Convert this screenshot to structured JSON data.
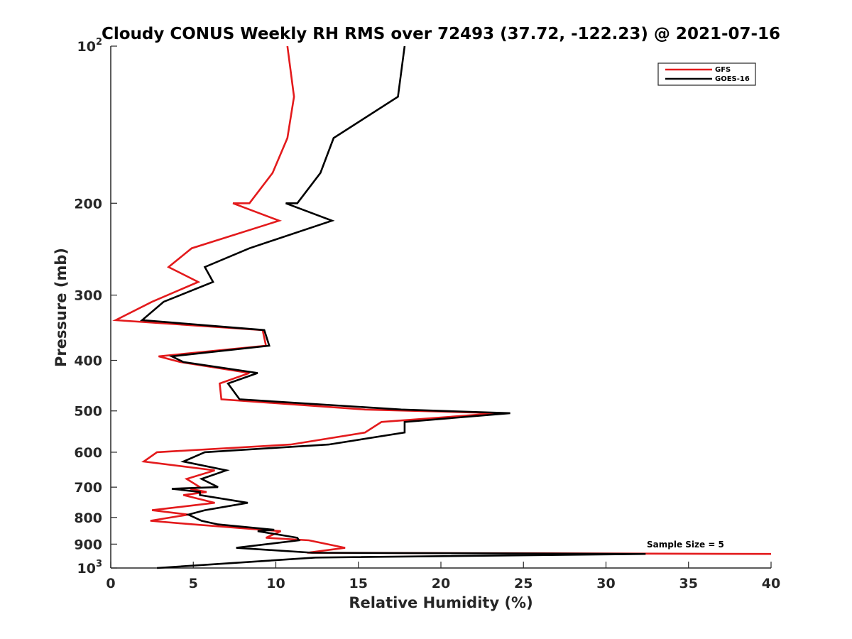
{
  "chart_data": {
    "type": "line",
    "title": "Cloudy CONUS Weekly RH RMS over 72493 (37.72, -122.23) @ 2021-07-16",
    "xlabel": "Relative Humidity (%)",
    "ylabel": "Pressure (mb)",
    "xlim": [
      0,
      40
    ],
    "ylim": [
      100,
      1000
    ],
    "y_scale": "log",
    "y_reversed": true,
    "grid": false,
    "legend_position": "top-right",
    "x_ticks": [
      "0",
      "5",
      "10",
      "15",
      "20",
      "25",
      "30",
      "35",
      "40"
    ],
    "y_ticks": [
      {
        "base": "10",
        "exp": "2",
        "label": ""
      },
      {
        "base": "",
        "exp": "",
        "label": "200"
      },
      {
        "base": "",
        "exp": "",
        "label": "300"
      },
      {
        "base": "",
        "exp": "",
        "label": "400"
      },
      {
        "base": "",
        "exp": "",
        "label": "500"
      },
      {
        "base": "",
        "exp": "",
        "label": "600"
      },
      {
        "base": "",
        "exp": "",
        "label": "700"
      },
      {
        "base": "",
        "exp": "",
        "label": "800"
      },
      {
        "base": "",
        "exp": "",
        "label": "900"
      },
      {
        "base": "10",
        "exp": "3",
        "label": ""
      }
    ],
    "annotation": "Sample Size = 5",
    "series": [
      {
        "name": "GFS",
        "color": "#e31a1c",
        "points": [
          [
            10.7,
            100
          ],
          [
            11.1,
            125
          ],
          [
            10.7,
            150
          ],
          [
            9.8,
            175
          ],
          [
            8.4,
            200
          ],
          [
            7.4,
            200
          ],
          [
            10.2,
            216
          ],
          [
            4.9,
            244
          ],
          [
            3.5,
            265
          ],
          [
            5.3,
            283
          ],
          [
            2.5,
            309
          ],
          [
            0.3,
            335
          ],
          [
            9.2,
            350
          ],
          [
            9.4,
            375
          ],
          [
            2.9,
            393
          ],
          [
            4.2,
            403
          ],
          [
            8.4,
            423
          ],
          [
            6.6,
            443
          ],
          [
            6.7,
            475
          ],
          [
            15.4,
            497
          ],
          [
            23.5,
            505
          ],
          [
            16.4,
            525
          ],
          [
            15.4,
            550
          ],
          [
            10.9,
            580
          ],
          [
            2.8,
            600
          ],
          [
            2.0,
            625
          ],
          [
            6.3,
            650
          ],
          [
            4.6,
            675
          ],
          [
            5.4,
            700
          ],
          [
            4.8,
            705
          ],
          [
            5.8,
            715
          ],
          [
            4.4,
            725
          ],
          [
            6.3,
            750
          ],
          [
            2.5,
            775
          ],
          [
            4.7,
            790
          ],
          [
            2.4,
            812
          ],
          [
            5.0,
            825
          ],
          [
            9.2,
            845
          ],
          [
            10.3,
            850
          ],
          [
            9.4,
            875
          ],
          [
            12.0,
            885
          ],
          [
            14.2,
            915
          ],
          [
            11.9,
            935
          ],
          [
            40.0,
            940
          ]
        ]
      },
      {
        "name": "GOES-16",
        "color": "#000000",
        "points": [
          [
            17.8,
            100
          ],
          [
            17.4,
            125
          ],
          [
            13.5,
            150
          ],
          [
            12.7,
            175
          ],
          [
            11.3,
            200
          ],
          [
            10.6,
            200
          ],
          [
            13.4,
            216
          ],
          [
            8.4,
            244
          ],
          [
            5.7,
            265
          ],
          [
            6.2,
            283
          ],
          [
            3.2,
            309
          ],
          [
            1.9,
            335
          ],
          [
            9.3,
            350
          ],
          [
            9.6,
            375
          ],
          [
            3.7,
            393
          ],
          [
            4.4,
            403
          ],
          [
            8.9,
            423
          ],
          [
            7.1,
            443
          ],
          [
            7.8,
            475
          ],
          [
            17.6,
            497
          ],
          [
            24.2,
            505
          ],
          [
            17.8,
            525
          ],
          [
            17.8,
            550
          ],
          [
            13.2,
            580
          ],
          [
            5.7,
            600
          ],
          [
            4.4,
            625
          ],
          [
            7.0,
            650
          ],
          [
            5.5,
            675
          ],
          [
            6.5,
            700
          ],
          [
            3.7,
            705
          ],
          [
            5.4,
            715
          ],
          [
            5.4,
            725
          ],
          [
            8.3,
            750
          ],
          [
            5.7,
            775
          ],
          [
            4.7,
            790
          ],
          [
            5.5,
            812
          ],
          [
            6.5,
            825
          ],
          [
            9.9,
            845
          ],
          [
            8.9,
            850
          ],
          [
            11.3,
            875
          ],
          [
            11.4,
            885
          ],
          [
            7.6,
            915
          ],
          [
            12.2,
            935
          ],
          [
            32.4,
            940
          ],
          [
            12.4,
            955
          ],
          [
            2.8,
            1000
          ]
        ]
      }
    ]
  }
}
